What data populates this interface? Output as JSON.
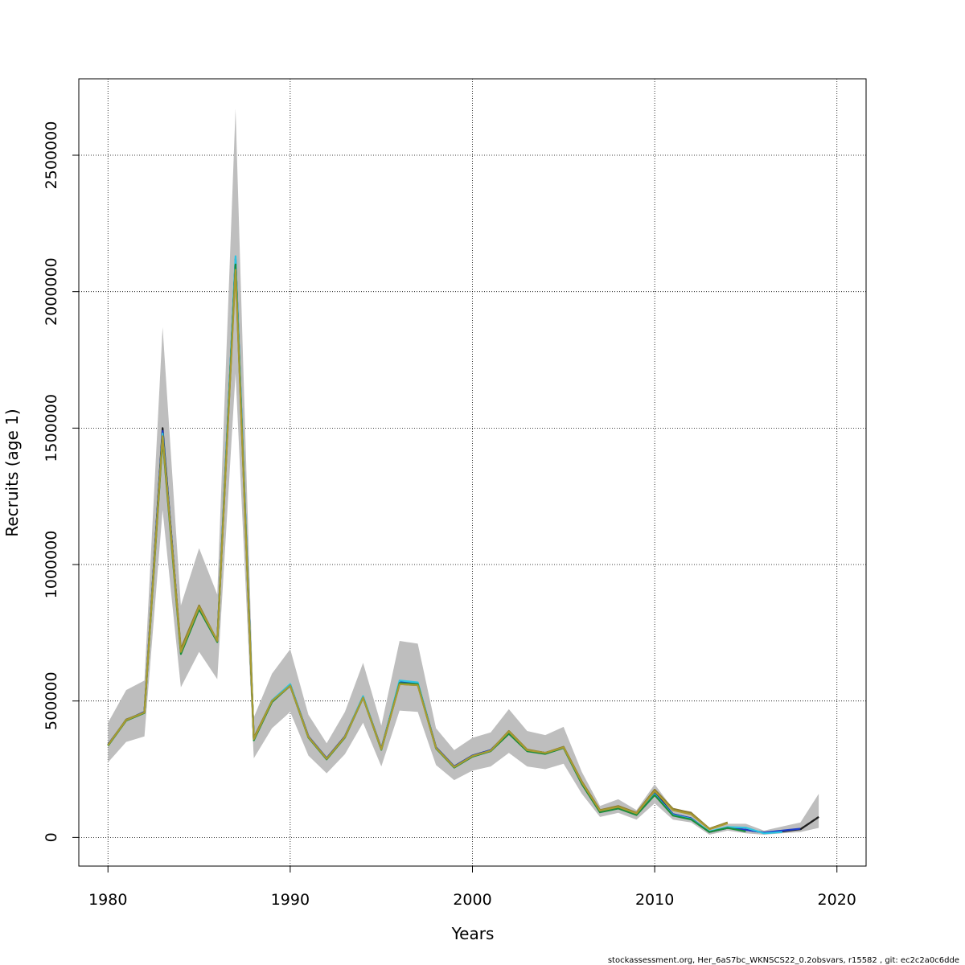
{
  "chart_data": {
    "type": "line",
    "xlabel": "Years",
    "ylabel": "Recruits (age 1)",
    "xlim": [
      1978.4,
      2021.6
    ],
    "ylim": [
      -105000,
      2780000
    ],
    "x_ticks": [
      1980,
      1990,
      2000,
      2010,
      2020
    ],
    "y_ticks": [
      0,
      500000,
      1000000,
      1500000,
      2000000,
      2500000
    ],
    "grid": true,
    "grid_style": "dotted",
    "legend": "none",
    "footer": "stockassessment.org, Her_6aS7bc_WKNSCS22_0.2obsvars, r15582 , git: ec2c2a0c6dde",
    "band": {
      "color": "#bebebe",
      "x": [
        1980,
        1981,
        1982,
        1983,
        1984,
        1985,
        1986,
        1987,
        1988,
        1989,
        1990,
        1991,
        1992,
        1993,
        1994,
        1995,
        1996,
        1997,
        1998,
        1999,
        2000,
        2001,
        2002,
        2003,
        2004,
        2005,
        2006,
        2007,
        2008,
        2009,
        2010,
        2011,
        2012,
        2013,
        2014,
        2015,
        2016,
        2017,
        2018,
        2019
      ],
      "lower": [
        275000,
        350000,
        370000,
        1200000,
        550000,
        680000,
        580000,
        1700000,
        290000,
        400000,
        460000,
        300000,
        235000,
        305000,
        420000,
        260000,
        465000,
        460000,
        265000,
        210000,
        245000,
        260000,
        310000,
        260000,
        250000,
        270000,
        160000,
        75000,
        90000,
        65000,
        125000,
        65000,
        55000,
        10000,
        25000,
        15000,
        10000,
        15000,
        20000,
        35000
      ],
      "upper": [
        420000,
        540000,
        575000,
        1870000,
        850000,
        1060000,
        890000,
        2670000,
        440000,
        600000,
        690000,
        450000,
        345000,
        460000,
        640000,
        410000,
        720000,
        710000,
        400000,
        320000,
        365000,
        385000,
        470000,
        390000,
        375000,
        405000,
        240000,
        115000,
        140000,
        100000,
        195000,
        105000,
        95000,
        30000,
        50000,
        50000,
        25000,
        40000,
        55000,
        160000
      ]
    },
    "series": [
      {
        "color": "#1f1f1f",
        "x": [
          1980,
          1981,
          1982,
          1983,
          1984,
          1985,
          1986,
          1987,
          1988,
          1989,
          1990,
          1991,
          1992,
          1993,
          1994,
          1995,
          1996,
          1997,
          1998,
          1999,
          2000,
          2001,
          2002,
          2003,
          2004,
          2005,
          2006,
          2007,
          2008,
          2009,
          2010,
          2011,
          2012,
          2013,
          2014,
          2015,
          2016,
          2017,
          2018,
          2019
        ],
        "values": [
          340000,
          430000,
          460000,
          1500000,
          680000,
          840000,
          720000,
          2120000,
          360000,
          500000,
          560000,
          370000,
          290000,
          370000,
          515000,
          325000,
          570000,
          565000,
          330000,
          260000,
          300000,
          320000,
          385000,
          320000,
          310000,
          330000,
          200000,
          95000,
          110000,
          85000,
          165000,
          85000,
          70000,
          20000,
          35000,
          28000,
          18000,
          22000,
          30000,
          75000
        ]
      },
      {
        "color": "#1e3cc8",
        "x": [
          1980,
          1981,
          1982,
          1983,
          1984,
          1985,
          1986,
          1987,
          1988,
          1989,
          1990,
          1991,
          1992,
          1993,
          1994,
          1995,
          1996,
          1997,
          1998,
          1999,
          2000,
          2001,
          2002,
          2003,
          2004,
          2005,
          2006,
          2007,
          2008,
          2009,
          2010,
          2011,
          2012,
          2013,
          2014,
          2015,
          2016,
          2017,
          2018
        ],
        "values": [
          340000,
          430000,
          460000,
          1490000,
          680000,
          840000,
          720000,
          2120000,
          360000,
          500000,
          560000,
          370000,
          290000,
          370000,
          515000,
          325000,
          570000,
          565000,
          330000,
          260000,
          300000,
          320000,
          385000,
          320000,
          310000,
          330000,
          200000,
          95000,
          110000,
          85000,
          160000,
          85000,
          70000,
          20000,
          35000,
          28000,
          18000,
          25000,
          32000
        ]
      },
      {
        "color": "#2ec4e0",
        "x": [
          1980,
          1981,
          1982,
          1983,
          1984,
          1985,
          1986,
          1987,
          1988,
          1989,
          1990,
          1991,
          1992,
          1993,
          1994,
          1995,
          1996,
          1997,
          1998,
          1999,
          2000,
          2001,
          2002,
          2003,
          2004,
          2005,
          2006,
          2007,
          2008,
          2009,
          2010,
          2011,
          2012,
          2013,
          2014,
          2015,
          2016,
          2017
        ],
        "values": [
          338000,
          432000,
          458000,
          1480000,
          682000,
          842000,
          718000,
          2130000,
          362000,
          502000,
          562000,
          368000,
          288000,
          368000,
          518000,
          323000,
          575000,
          568000,
          328000,
          258000,
          298000,
          318000,
          388000,
          318000,
          308000,
          332000,
          198000,
          96000,
          108000,
          84000,
          158000,
          82000,
          68000,
          22000,
          38000,
          36000,
          15000,
          20000
        ]
      },
      {
        "color": "#8a7a2e",
        "x": [
          1980,
          1981,
          1982,
          1983,
          1984,
          1985,
          1986,
          1987,
          1988,
          1989,
          1990,
          1991,
          1992,
          1993,
          1994,
          1995,
          1996,
          1997,
          1998,
          1999,
          2000,
          2001,
          2002,
          2003,
          2004,
          2005,
          2006,
          2007,
          2008,
          2009,
          2010,
          2011,
          2012,
          2013,
          2014
        ],
        "values": [
          338000,
          432000,
          458000,
          1470000,
          690000,
          850000,
          720000,
          2090000,
          365000,
          500000,
          555000,
          368000,
          288000,
          368000,
          512000,
          323000,
          562000,
          558000,
          328000,
          258000,
          298000,
          318000,
          390000,
          322000,
          310000,
          332000,
          205000,
          100000,
          115000,
          90000,
          175000,
          105000,
          90000,
          32000,
          55000
        ]
      },
      {
        "color": "#1c8c3c",
        "x": [
          1980,
          1981,
          1982,
          1983,
          1984,
          1985,
          1986,
          1987,
          1988,
          1989,
          1990,
          1991,
          1992,
          1993,
          1994,
          1995,
          1996,
          1997,
          1998,
          1999,
          2000,
          2001,
          2002,
          2003,
          2004,
          2005,
          2006,
          2007,
          2008,
          2009,
          2010,
          2011,
          2012,
          2013,
          2014,
          2015
        ],
        "values": [
          336000,
          428000,
          456000,
          1460000,
          672000,
          836000,
          716000,
          2100000,
          356000,
          496000,
          556000,
          366000,
          286000,
          366000,
          512000,
          321000,
          566000,
          562000,
          326000,
          256000,
          296000,
          316000,
          380000,
          316000,
          306000,
          328000,
          196000,
          92000,
          106000,
          82000,
          155000,
          80000,
          66000,
          20000,
          35000,
          22000
        ]
      },
      {
        "color": "#a89a32",
        "x": [
          1980,
          1981,
          1982,
          1983,
          1984,
          1985,
          1986,
          1987,
          1988,
          1989,
          1990,
          1991,
          1992,
          1993,
          1994,
          1995,
          1996,
          1997,
          1998,
          1999,
          2000,
          2001,
          2002,
          2003,
          2004,
          2005,
          2006,
          2007,
          2008,
          2009,
          2010,
          2011,
          2012,
          2013,
          2014
        ],
        "values": [
          338000,
          430000,
          458000,
          1470000,
          680000,
          845000,
          720000,
          2080000,
          360000,
          500000,
          556000,
          368000,
          288000,
          368000,
          512000,
          323000,
          562000,
          558000,
          328000,
          258000,
          298000,
          318000,
          388000,
          320000,
          310000,
          330000,
          202000,
          98000,
          112000,
          88000,
          170000,
          100000,
          85000,
          30000,
          52000
        ]
      }
    ]
  }
}
